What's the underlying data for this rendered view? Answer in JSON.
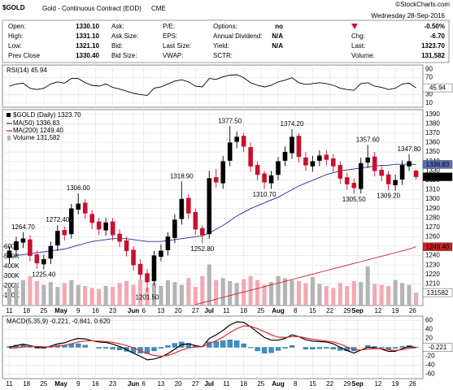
{
  "header": {
    "symbol": "$GOLD",
    "name": "Gold - Continuous Contract (EOD)",
    "exchange": "CME",
    "credit": "©StockCharts.com",
    "date": "Wednesday 28-Sep-2016",
    "fields": [
      [
        {
          "label": "Open:",
          "value": "1330.10"
        },
        {
          "label": "Ask:"
        },
        {
          "label": "P/E:"
        },
        {
          "label": "Options:",
          "value": "no"
        }
      ],
      [
        {
          "label": "High:",
          "value": "1331.10"
        },
        {
          "label": "Ask Size:"
        },
        {
          "label": "EPS:"
        },
        {
          "label": "Annual Dividend:",
          "value": "N/A"
        }
      ],
      [
        {
          "label": "Low:",
          "value": "1321.10"
        },
        {
          "label": "Bid:"
        },
        {
          "label": "Last Size:"
        },
        {
          "label": "Yield:",
          "value": "N/A"
        }
      ],
      [
        {
          "label": "Prev Close",
          "value": "1330.40"
        },
        {
          "label": "Bid Size:"
        },
        {
          "label": "VWAP:"
        },
        {
          "label": "SCTR:"
        }
      ]
    ],
    "change_pct": "-0.50%",
    "summary": [
      {
        "label": "Chg:",
        "value": "-6.70"
      },
      {
        "label": "Last:",
        "value": "1323.70"
      },
      {
        "label": "Volume:",
        "value": "131,582"
      }
    ]
  },
  "chart_data": [
    {
      "type": "line",
      "legend": "RSI(14) 45.94",
      "xlim": [
        -1,
        60
      ],
      "ylim": [
        0,
        100
      ],
      "yticks": [
        10,
        30,
        70,
        90
      ],
      "grid": true,
      "series": [
        {
          "color": "#000000",
          "values": [
            50,
            55,
            57,
            45,
            42,
            45,
            55,
            60,
            57,
            68,
            68,
            58,
            52,
            50,
            55,
            47,
            43,
            38,
            33,
            30,
            28,
            45,
            48,
            55,
            62,
            65,
            60,
            50,
            48,
            68,
            66,
            72,
            76,
            77,
            70,
            58,
            52,
            48,
            52,
            60,
            64,
            70,
            58,
            54,
            56,
            58,
            56,
            52,
            45,
            42,
            40,
            56,
            58,
            50,
            47,
            42,
            45,
            55,
            57,
            45.94
          ]
        }
      ]
    },
    {
      "type": "candlestick",
      "legend": "$GOLD (Daily) 1323.70",
      "xlim": [
        -1,
        60
      ],
      "ylim": [
        1187,
        1395
      ],
      "yticks": [
        1200,
        1210,
        1220,
        1230,
        1240,
        1250,
        1260,
        1270,
        1280,
        1290,
        1300,
        1310,
        1320,
        1330,
        1340,
        1350,
        1360,
        1370,
        1380,
        1390
      ],
      "grid": true,
      "xticks": [
        {
          "value": 0,
          "label": "11"
        },
        {
          "value": 2.5,
          "label": "18"
        },
        {
          "value": 5,
          "label": "25"
        },
        {
          "value": 7.5,
          "label": "May"
        },
        {
          "value": 10,
          "label": "9"
        },
        {
          "value": 12.5,
          "label": "16"
        },
        {
          "value": 15,
          "label": "23"
        },
        {
          "value": 18,
          "label": "Jun"
        },
        {
          "value": 19.5,
          "label": "6"
        },
        {
          "value": 22,
          "label": "13"
        },
        {
          "value": 24.5,
          "label": "20"
        },
        {
          "value": 27,
          "label": "27"
        },
        {
          "value": 29,
          "label": "Jul"
        },
        {
          "value": 31.5,
          "label": "11"
        },
        {
          "value": 34,
          "label": "18"
        },
        {
          "value": 36.5,
          "label": "25"
        },
        {
          "value": 39,
          "label": "Aug"
        },
        {
          "value": 41.5,
          "label": "8"
        },
        {
          "value": 44,
          "label": "15"
        },
        {
          "value": 46.5,
          "label": "22"
        },
        {
          "value": 49,
          "label": "29"
        },
        {
          "value": 50.5,
          "label": "Sep"
        },
        {
          "value": 53.5,
          "label": "12"
        },
        {
          "value": 56,
          "label": "19"
        },
        {
          "value": 58.5,
          "label": "26"
        }
      ],
      "up_color": "#000000",
      "down_color": "#c8102e",
      "open": [
        1238,
        1246,
        1254,
        1257,
        1241,
        1231,
        1237,
        1251,
        1267,
        1263,
        1289,
        1296,
        1284,
        1276,
        1267,
        1276,
        1263,
        1256,
        1246,
        1231,
        1221,
        1213,
        1239,
        1246,
        1259,
        1279,
        1301,
        1286,
        1269,
        1263,
        1323,
        1317,
        1341,
        1361,
        1367,
        1355,
        1336,
        1327,
        1317,
        1326,
        1341,
        1349,
        1367,
        1344,
        1335,
        1341,
        1347,
        1343,
        1336,
        1323,
        1317,
        1311,
        1339,
        1345,
        1331,
        1326,
        1315,
        1321,
        1335,
        1330.1
      ],
      "high": [
        1250,
        1260,
        1264.7,
        1262,
        1245,
        1241,
        1255,
        1272.4,
        1271,
        1295,
        1306,
        1300,
        1288,
        1280,
        1280,
        1280,
        1268,
        1260,
        1250,
        1236,
        1226,
        1245,
        1252,
        1265,
        1284,
        1318.9,
        1305,
        1290,
        1272,
        1330,
        1332,
        1346,
        1377.5,
        1372,
        1370,
        1360,
        1340,
        1330,
        1330,
        1345,
        1356,
        1374.2,
        1370,
        1350,
        1346,
        1352,
        1352,
        1348,
        1340,
        1328,
        1322,
        1344,
        1357.6,
        1350,
        1336,
        1330,
        1326,
        1341,
        1347.8,
        1331.1
      ],
      "low": [
        1232,
        1240,
        1248,
        1234,
        1226,
        1225.4,
        1231,
        1245,
        1256,
        1258,
        1284,
        1279,
        1268,
        1262,
        1261,
        1256,
        1249,
        1239,
        1224,
        1214,
        1201.5,
        1208,
        1234,
        1240,
        1253,
        1273,
        1279,
        1262,
        1252.8,
        1258,
        1312,
        1311,
        1335,
        1354,
        1350,
        1329,
        1320,
        1310.7,
        1311,
        1320,
        1335,
        1343,
        1339,
        1330,
        1329,
        1335,
        1336,
        1329,
        1316,
        1310,
        1305.5,
        1306,
        1333,
        1324,
        1319,
        1309.2,
        1309,
        1315,
        1330,
        1321.1
      ],
      "close": [
        1245,
        1255,
        1258,
        1240,
        1232,
        1236,
        1250,
        1266,
        1262,
        1290,
        1295,
        1285,
        1275,
        1268,
        1275,
        1262,
        1255,
        1245,
        1230,
        1220,
        1212,
        1240,
        1245,
        1260,
        1278,
        1300,
        1285,
        1268,
        1262,
        1322,
        1318,
        1340,
        1360,
        1366,
        1356,
        1335,
        1326,
        1318,
        1325,
        1340,
        1350,
        1366,
        1345,
        1336,
        1340,
        1346,
        1342,
        1335,
        1322,
        1316,
        1312,
        1338,
        1344,
        1330,
        1325,
        1316,
        1320,
        1336,
        1340,
        1323.7
      ],
      "series": [
        {
          "name": "MA(50) 1336.83",
          "color": "#1f2f9a",
          "values": [
            1238,
            1240,
            1241,
            1242,
            1243,
            1244,
            1245,
            1246,
            1247,
            1249,
            1251,
            1253,
            1255,
            1256,
            1257,
            1258,
            1258,
            1258,
            1257,
            1256,
            1255,
            1255,
            1255,
            1256,
            1257,
            1258,
            1259,
            1260,
            1261,
            1264,
            1268,
            1272,
            1277,
            1282,
            1286,
            1290,
            1293,
            1296,
            1299,
            1302,
            1306,
            1310,
            1314,
            1317,
            1320,
            1323,
            1326,
            1328,
            1330,
            1331,
            1332,
            1333,
            1334,
            1335,
            1336,
            1336,
            1337,
            1337,
            1337,
            1336.83
          ]
        },
        {
          "name": "MA(200) 1249.40",
          "color": "#d02020",
          "values": [
            null,
            null,
            null,
            null,
            null,
            null,
            null,
            null,
            null,
            null,
            null,
            null,
            null,
            null,
            null,
            null,
            null,
            null,
            null,
            null,
            null,
            null,
            null,
            null,
            null,
            null,
            null,
            1188,
            1189.9,
            1191.8,
            1193.7,
            1195.6,
            1197.5,
            1199.4,
            1201.3,
            1203.2,
            1205.1,
            1207,
            1208.9,
            1210.8,
            1212.7,
            1214.6,
            1216.5,
            1218.4,
            1220.3,
            1222.2,
            1224.1,
            1226,
            1227.9,
            1229.8,
            1231.7,
            1233.6,
            1235.5,
            1237.4,
            1239.3,
            1241.2,
            1243.1,
            1245,
            1246.9,
            1249.4
          ]
        }
      ],
      "volume": {
        "name": "Volume 131,582",
        "axis": "y2",
        "up_color": "#b4b4b4",
        "down_color": "#f2a9b3",
        "values": [
          180000,
          220000,
          260000,
          300000,
          250000,
          210000,
          240000,
          190000,
          230000,
          260000,
          210000,
          200000,
          180000,
          170000,
          200000,
          190000,
          230000,
          250000,
          210000,
          260000,
          180000,
          230000,
          200000,
          260000,
          240000,
          210000,
          280000,
          190000,
          300000,
          420000,
          260000,
          280000,
          250000,
          230000,
          270000,
          300000,
          260000,
          210000,
          240000,
          300000,
          280000,
          260000,
          250000,
          230000,
          290000,
          220000,
          200000,
          180000,
          230000,
          200000,
          250000,
          240000,
          400000,
          220000,
          210000,
          200000,
          260000,
          230000,
          210000,
          131582
        ]
      },
      "y2lim": [
        0,
        2000000
      ],
      "y2ticks": [
        {
          "value": 100000,
          "label": "100K"
        },
        {
          "value": 200000,
          "label": "200K"
        },
        {
          "value": 300000,
          "label": "300K"
        },
        {
          "value": 400000,
          "label": "400K"
        },
        {
          "value": 500000,
          "label": "500K"
        },
        {
          "value": 600000,
          "label": "600K"
        }
      ],
      "annotations": [
        {
          "index": 2,
          "value": 1264.7,
          "label": "1264.70"
        },
        {
          "index": 5,
          "value": 1225.4,
          "label": "1225.40"
        },
        {
          "index": 7,
          "value": 1272.4,
          "label": "1272.40"
        },
        {
          "index": 10,
          "value": 1306,
          "label": "1306.00"
        },
        {
          "index": 20,
          "value": 1201.5,
          "label": "1201.50"
        },
        {
          "index": 25,
          "value": 1318.9,
          "label": "1318.90"
        },
        {
          "index": 28,
          "value": 1252.8,
          "label": "1252.80"
        },
        {
          "index": 32,
          "value": 1377.5,
          "label": "1377.50"
        },
        {
          "index": 37,
          "value": 1310.7,
          "label": "1310.70"
        },
        {
          "index": 41,
          "value": 1374.2,
          "label": "1374.20"
        },
        {
          "index": 50,
          "value": 1305.5,
          "label": "1305.50"
        },
        {
          "index": 52,
          "value": 1357.6,
          "label": "1357.60"
        },
        {
          "index": 55,
          "value": 1309.2,
          "label": "1309.20"
        },
        {
          "index": 58,
          "value": 1347.8,
          "label": "1347.80"
        }
      ],
      "tags": [
        {
          "value": 1336.83,
          "label": "1336.83",
          "color": "#5a6fb8"
        },
        {
          "value": 1323.7,
          "label": "1323.70",
          "color": "#000000"
        },
        {
          "value": 1249.4,
          "label": "1249.40",
          "color": "#d02020"
        }
      ]
    },
    {
      "type": "macd",
      "legend": "MACD(5,35,9) -0.221, -0.841, 0.620",
      "xlim": [
        -1,
        60
      ],
      "ylim": [
        -70,
        70
      ],
      "yticks": [
        -60,
        -40,
        -20,
        20,
        40,
        60
      ],
      "grid": true,
      "lines": [
        {
          "color": "#000000",
          "values": [
            0,
            4,
            7,
            4,
            0,
            -1,
            3,
            8,
            10,
            16,
            20,
            19,
            15,
            12,
            11,
            7,
            2,
            -5,
            -13,
            -20,
            -28,
            -26,
            -22,
            -14,
            -4,
            6,
            8,
            4,
            1,
            20,
            28,
            38,
            50,
            57,
            56,
            46,
            34,
            22,
            16,
            16,
            20,
            28,
            24,
            17,
            14,
            13,
            12,
            8,
            0,
            -7,
            -13,
            -6,
            0,
            -1,
            -4,
            -9,
            -9,
            -3,
            2,
            -0.221
          ]
        },
        {
          "color": "#e03030",
          "values": [
            -2,
            -1,
            1,
            2,
            2,
            1,
            1,
            3,
            5,
            8,
            12,
            14,
            15,
            14,
            13,
            11,
            8,
            4,
            -1,
            -7,
            -14,
            -18,
            -20,
            -18,
            -13,
            -6,
            -1,
            1,
            1,
            8,
            15,
            23,
            33,
            42,
            48,
            47,
            42,
            35,
            28,
            23,
            22,
            24,
            24,
            21,
            18,
            16,
            14,
            12,
            7,
            1,
            -5,
            -6,
            -4,
            -3,
            -3,
            -5,
            -7,
            -5,
            -2,
            -0.841
          ]
        }
      ],
      "histogram": {
        "color": "#3d8fc6",
        "values": [
          2,
          5,
          6,
          2,
          -2,
          -2,
          2,
          5,
          5,
          8,
          8,
          5,
          0,
          -2,
          -2,
          -4,
          -6,
          -9,
          -12,
          -13,
          -14,
          -8,
          -2,
          4,
          9,
          12,
          9,
          3,
          0,
          12,
          13,
          15,
          17,
          15,
          8,
          -1,
          -8,
          -13,
          -12,
          -7,
          -2,
          4,
          0,
          -4,
          -4,
          -3,
          -2,
          -4,
          -7,
          -8,
          -8,
          0,
          4,
          2,
          -1,
          -4,
          -2,
          2,
          4,
          0.62
        ]
      }
    }
  ]
}
